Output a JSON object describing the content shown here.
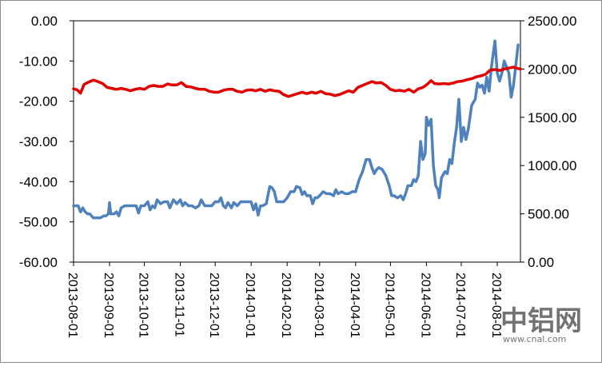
{
  "chart_data": {
    "type": "line",
    "title": "",
    "xlabel": "",
    "ylabel": "",
    "y2label": "",
    "x_tick_labels": [
      "2013-08-01",
      "2013-09-01",
      "2013-10-01",
      "2013-11-01",
      "2013-12-01",
      "2014-01-01",
      "2014-02-01",
      "2014-03-01",
      "2014-04-01",
      "2014-05-01",
      "2014-06-01",
      "2014-07-01",
      "2014-08-01"
    ],
    "x_range": [
      "2013-08-01",
      "2014-08-21"
    ],
    "ylim_left": [
      -60,
      0
    ],
    "ylim_right": [
      0,
      2500
    ],
    "left_tick_labels": [
      "0.00",
      "-10.00",
      "-20.00",
      "-30.00",
      "-40.00",
      "-50.00",
      "-60.00"
    ],
    "right_tick_labels": [
      "2500.00",
      "2000.00",
      "1500.00",
      "1000.00",
      "500.00",
      "0.00"
    ],
    "grid": false,
    "legend": "none",
    "series": [
      {
        "axis": "left",
        "color": "#4f81bd",
        "points": [
          [
            "2013-08-01",
            -46
          ],
          [
            "2013-08-03",
            -46
          ],
          [
            "2013-08-05",
            -46
          ],
          [
            "2013-08-07",
            -47.5
          ],
          [
            "2013-08-09",
            -46.5
          ],
          [
            "2013-08-11",
            -47.5
          ],
          [
            "2013-08-13",
            -48
          ],
          [
            "2013-08-15",
            -48
          ],
          [
            "2013-08-18",
            -49
          ],
          [
            "2013-08-21",
            -49
          ],
          [
            "2013-08-24",
            -49
          ],
          [
            "2013-08-27",
            -48.5
          ],
          [
            "2013-08-29",
            -48.5
          ],
          [
            "2013-08-31",
            -48
          ],
          [
            "2013-09-01",
            -45.2
          ],
          [
            "2013-09-02",
            -48
          ],
          [
            "2013-09-05",
            -48
          ],
          [
            "2013-09-07",
            -47.5
          ],
          [
            "2013-09-09",
            -48.5
          ],
          [
            "2013-09-11",
            -46.5
          ],
          [
            "2013-09-14",
            -46
          ],
          [
            "2013-09-17",
            -46
          ],
          [
            "2013-09-20",
            -46
          ],
          [
            "2013-09-24",
            -46
          ],
          [
            "2013-09-26",
            -47.8
          ],
          [
            "2013-09-28",
            -46
          ],
          [
            "2013-10-01",
            -46
          ],
          [
            "2013-10-04",
            -45
          ],
          [
            "2013-10-06",
            -47
          ],
          [
            "2013-10-08",
            -46
          ],
          [
            "2013-10-10",
            -46.5
          ],
          [
            "2013-10-12",
            -44.5
          ],
          [
            "2013-10-15",
            -45.5
          ],
          [
            "2013-10-18",
            -45
          ],
          [
            "2013-10-21",
            -45
          ],
          [
            "2013-10-23",
            -46.5
          ],
          [
            "2013-10-26",
            -44.5
          ],
          [
            "2013-10-29",
            -45.5
          ],
          [
            "2013-11-01",
            -44.5
          ],
          [
            "2013-11-03",
            -46
          ],
          [
            "2013-11-05",
            -45.2
          ],
          [
            "2013-11-08",
            -46
          ],
          [
            "2013-11-11",
            -46
          ],
          [
            "2013-11-14",
            -46.5
          ],
          [
            "2013-11-17",
            -46
          ],
          [
            "2013-11-19",
            -44.5
          ],
          [
            "2013-11-22",
            -46
          ],
          [
            "2013-11-25",
            -46
          ],
          [
            "2013-11-28",
            -46
          ],
          [
            "2013-12-01",
            -45
          ],
          [
            "2013-12-04",
            -45
          ],
          [
            "2013-12-06",
            -44
          ],
          [
            "2013-12-08",
            -46
          ],
          [
            "2013-12-10",
            -46.5
          ],
          [
            "2013-12-12",
            -45.2
          ],
          [
            "2013-12-15",
            -46.5
          ],
          [
            "2013-12-17",
            -45.2
          ],
          [
            "2013-12-20",
            -46
          ],
          [
            "2013-12-23",
            -45
          ],
          [
            "2013-12-26",
            -45
          ],
          [
            "2013-12-29",
            -45
          ],
          [
            "2014-01-01",
            -45
          ],
          [
            "2014-01-03",
            -47
          ],
          [
            "2014-01-05",
            -45.5
          ],
          [
            "2014-01-07",
            -48.3
          ],
          [
            "2014-01-09",
            -46
          ],
          [
            "2014-01-11",
            -46
          ],
          [
            "2014-01-14",
            -45.5
          ],
          [
            "2014-01-17",
            -41.2
          ],
          [
            "2014-01-19",
            -41.5
          ],
          [
            "2014-01-21",
            -42.5
          ],
          [
            "2014-01-23",
            -45
          ],
          [
            "2014-01-26",
            -45
          ],
          [
            "2014-01-29",
            -45
          ],
          [
            "2014-02-01",
            -44
          ],
          [
            "2014-02-04",
            -42.5
          ],
          [
            "2014-02-07",
            -42.5
          ],
          [
            "2014-02-09",
            -41.2
          ],
          [
            "2014-02-12",
            -41.5
          ],
          [
            "2014-02-14",
            -43.2
          ],
          [
            "2014-02-16",
            -42.5
          ],
          [
            "2014-02-18",
            -43.5
          ],
          [
            "2014-02-21",
            -43.5
          ],
          [
            "2014-02-23",
            -45.5
          ],
          [
            "2014-02-25",
            -44
          ],
          [
            "2014-02-27",
            -44
          ],
          [
            "2014-03-01",
            -43.5
          ],
          [
            "2014-03-04",
            -42.5
          ],
          [
            "2014-03-07",
            -43
          ],
          [
            "2014-03-10",
            -43
          ],
          [
            "2014-03-13",
            -43.5
          ],
          [
            "2014-03-15",
            -42
          ],
          [
            "2014-03-17",
            -43
          ],
          [
            "2014-03-20",
            -42.5
          ],
          [
            "2014-03-23",
            -43
          ],
          [
            "2014-03-26",
            -43
          ],
          [
            "2014-03-29",
            -42.5
          ],
          [
            "2014-04-01",
            -42.5
          ],
          [
            "2014-04-04",
            -39.5
          ],
          [
            "2014-04-07",
            -37.5
          ],
          [
            "2014-04-10",
            -34.5
          ],
          [
            "2014-04-13",
            -34.5
          ],
          [
            "2014-04-15",
            -36.5
          ],
          [
            "2014-04-17",
            -38
          ],
          [
            "2014-04-19",
            -37
          ],
          [
            "2014-04-21",
            -36.5
          ],
          [
            "2014-04-24",
            -37
          ],
          [
            "2014-04-27",
            -38.5
          ],
          [
            "2014-04-30",
            -41
          ],
          [
            "2014-05-02",
            -43.5
          ],
          [
            "2014-05-04",
            -43.5
          ],
          [
            "2014-05-07",
            -44
          ],
          [
            "2014-05-10",
            -43.5
          ],
          [
            "2014-05-12",
            -44.5
          ],
          [
            "2014-05-14",
            -43
          ],
          [
            "2014-05-16",
            -41
          ],
          [
            "2014-05-19",
            -41
          ],
          [
            "2014-05-21",
            -39.5
          ],
          [
            "2014-05-23",
            -40
          ],
          [
            "2014-05-25",
            -38.5
          ],
          [
            "2014-05-27",
            -30
          ],
          [
            "2014-05-29",
            -34.5
          ],
          [
            "2014-05-31",
            -33
          ],
          [
            "2014-06-01",
            -24
          ],
          [
            "2014-06-03",
            -26
          ],
          [
            "2014-06-05",
            -24.5
          ],
          [
            "2014-06-07",
            -36
          ],
          [
            "2014-06-09",
            -41
          ],
          [
            "2014-06-11",
            -42
          ],
          [
            "2014-06-12",
            -44
          ],
          [
            "2014-06-14",
            -39
          ],
          [
            "2014-06-17",
            -37.5
          ],
          [
            "2014-06-19",
            -38
          ],
          [
            "2014-06-21",
            -34.5
          ],
          [
            "2014-06-23",
            -35.5
          ],
          [
            "2014-06-25",
            -30.5
          ],
          [
            "2014-06-27",
            -26.5
          ],
          [
            "2014-06-29",
            -19.5
          ],
          [
            "2014-07-01",
            -30
          ],
          [
            "2014-07-03",
            -26.5
          ],
          [
            "2014-07-05",
            -29.5
          ],
          [
            "2014-07-07",
            -27
          ],
          [
            "2014-07-10",
            -21
          ],
          [
            "2014-07-13",
            -19.5
          ],
          [
            "2014-07-15",
            -15.5
          ],
          [
            "2014-07-17",
            -16.5
          ],
          [
            "2014-07-19",
            -16
          ],
          [
            "2014-07-21",
            -18
          ],
          [
            "2014-07-23",
            -14
          ],
          [
            "2014-07-25",
            -17.5
          ],
          [
            "2014-07-27",
            -11.5
          ],
          [
            "2014-07-30",
            -5
          ],
          [
            "2014-08-01",
            -13
          ],
          [
            "2014-08-03",
            -15
          ],
          [
            "2014-08-05",
            -13
          ],
          [
            "2014-08-07",
            -10
          ],
          [
            "2014-08-09",
            -11.5
          ],
          [
            "2014-08-11",
            -13
          ],
          [
            "2014-08-13",
            -19
          ],
          [
            "2014-08-15",
            -16
          ],
          [
            "2014-08-17",
            -11
          ],
          [
            "2014-08-19",
            -6
          ]
        ]
      },
      {
        "axis": "right",
        "color": "#e00000",
        "points": [
          [
            "2013-08-01",
            1795
          ],
          [
            "2013-08-04",
            1785
          ],
          [
            "2013-08-07",
            1750
          ],
          [
            "2013-08-10",
            1840
          ],
          [
            "2013-08-14",
            1865
          ],
          [
            "2013-08-18",
            1885
          ],
          [
            "2013-08-22",
            1870
          ],
          [
            "2013-08-26",
            1850
          ],
          [
            "2013-08-30",
            1810
          ],
          [
            "2013-09-03",
            1800
          ],
          [
            "2013-09-07",
            1790
          ],
          [
            "2013-09-11",
            1800
          ],
          [
            "2013-09-15",
            1790
          ],
          [
            "2013-09-19",
            1775
          ],
          [
            "2013-09-23",
            1790
          ],
          [
            "2013-09-27",
            1800
          ],
          [
            "2013-10-01",
            1790
          ],
          [
            "2013-10-05",
            1820
          ],
          [
            "2013-10-09",
            1830
          ],
          [
            "2013-10-13",
            1820
          ],
          [
            "2013-10-17",
            1820
          ],
          [
            "2013-10-21",
            1845
          ],
          [
            "2013-10-25",
            1835
          ],
          [
            "2013-10-29",
            1835
          ],
          [
            "2013-11-02",
            1860
          ],
          [
            "2013-11-06",
            1820
          ],
          [
            "2013-11-10",
            1815
          ],
          [
            "2013-11-14",
            1800
          ],
          [
            "2013-11-18",
            1790
          ],
          [
            "2013-11-22",
            1790
          ],
          [
            "2013-11-26",
            1770
          ],
          [
            "2013-11-30",
            1760
          ],
          [
            "2013-12-04",
            1760
          ],
          [
            "2013-12-08",
            1780
          ],
          [
            "2013-12-12",
            1790
          ],
          [
            "2013-12-16",
            1790
          ],
          [
            "2013-12-20",
            1770
          ],
          [
            "2013-12-24",
            1760
          ],
          [
            "2013-12-28",
            1780
          ],
          [
            "2014-01-01",
            1785
          ],
          [
            "2014-01-05",
            1775
          ],
          [
            "2014-01-09",
            1790
          ],
          [
            "2014-01-13",
            1770
          ],
          [
            "2014-01-17",
            1785
          ],
          [
            "2014-01-21",
            1775
          ],
          [
            "2014-01-25",
            1770
          ],
          [
            "2014-01-29",
            1735
          ],
          [
            "2014-02-02",
            1715
          ],
          [
            "2014-02-06",
            1730
          ],
          [
            "2014-02-10",
            1745
          ],
          [
            "2014-02-14",
            1760
          ],
          [
            "2014-02-18",
            1745
          ],
          [
            "2014-02-22",
            1760
          ],
          [
            "2014-02-26",
            1750
          ],
          [
            "2014-03-02",
            1770
          ],
          [
            "2014-03-06",
            1745
          ],
          [
            "2014-03-10",
            1740
          ],
          [
            "2014-03-14",
            1725
          ],
          [
            "2014-03-18",
            1735
          ],
          [
            "2014-03-22",
            1755
          ],
          [
            "2014-03-26",
            1775
          ],
          [
            "2014-03-30",
            1760
          ],
          [
            "2014-04-03",
            1810
          ],
          [
            "2014-04-07",
            1830
          ],
          [
            "2014-04-11",
            1850
          ],
          [
            "2014-04-15",
            1870
          ],
          [
            "2014-04-19",
            1855
          ],
          [
            "2014-04-23",
            1860
          ],
          [
            "2014-04-27",
            1830
          ],
          [
            "2014-05-01",
            1790
          ],
          [
            "2014-05-05",
            1775
          ],
          [
            "2014-05-09",
            1780
          ],
          [
            "2014-05-13",
            1770
          ],
          [
            "2014-05-17",
            1790
          ],
          [
            "2014-05-21",
            1760
          ],
          [
            "2014-05-25",
            1795
          ],
          [
            "2014-05-29",
            1810
          ],
          [
            "2014-06-02",
            1845
          ],
          [
            "2014-06-05",
            1880
          ],
          [
            "2014-06-08",
            1850
          ],
          [
            "2014-06-12",
            1845
          ],
          [
            "2014-06-16",
            1850
          ],
          [
            "2014-06-20",
            1845
          ],
          [
            "2014-06-24",
            1855
          ],
          [
            "2014-06-28",
            1870
          ],
          [
            "2014-07-02",
            1875
          ],
          [
            "2014-07-06",
            1890
          ],
          [
            "2014-07-10",
            1900
          ],
          [
            "2014-07-14",
            1920
          ],
          [
            "2014-07-18",
            1930
          ],
          [
            "2014-07-22",
            1945
          ],
          [
            "2014-07-26",
            1990
          ],
          [
            "2014-07-30",
            1995
          ],
          [
            "2014-08-03",
            1985
          ],
          [
            "2014-08-07",
            2000
          ],
          [
            "2014-08-11",
            2010
          ],
          [
            "2014-08-15",
            2020
          ],
          [
            "2014-08-19",
            2005
          ],
          [
            "2014-08-21",
            2000
          ]
        ]
      }
    ]
  },
  "watermark": {
    "logo_text": "中铝网",
    "url_text": "www.cnal.com",
    "color": "#4a8fd6"
  }
}
